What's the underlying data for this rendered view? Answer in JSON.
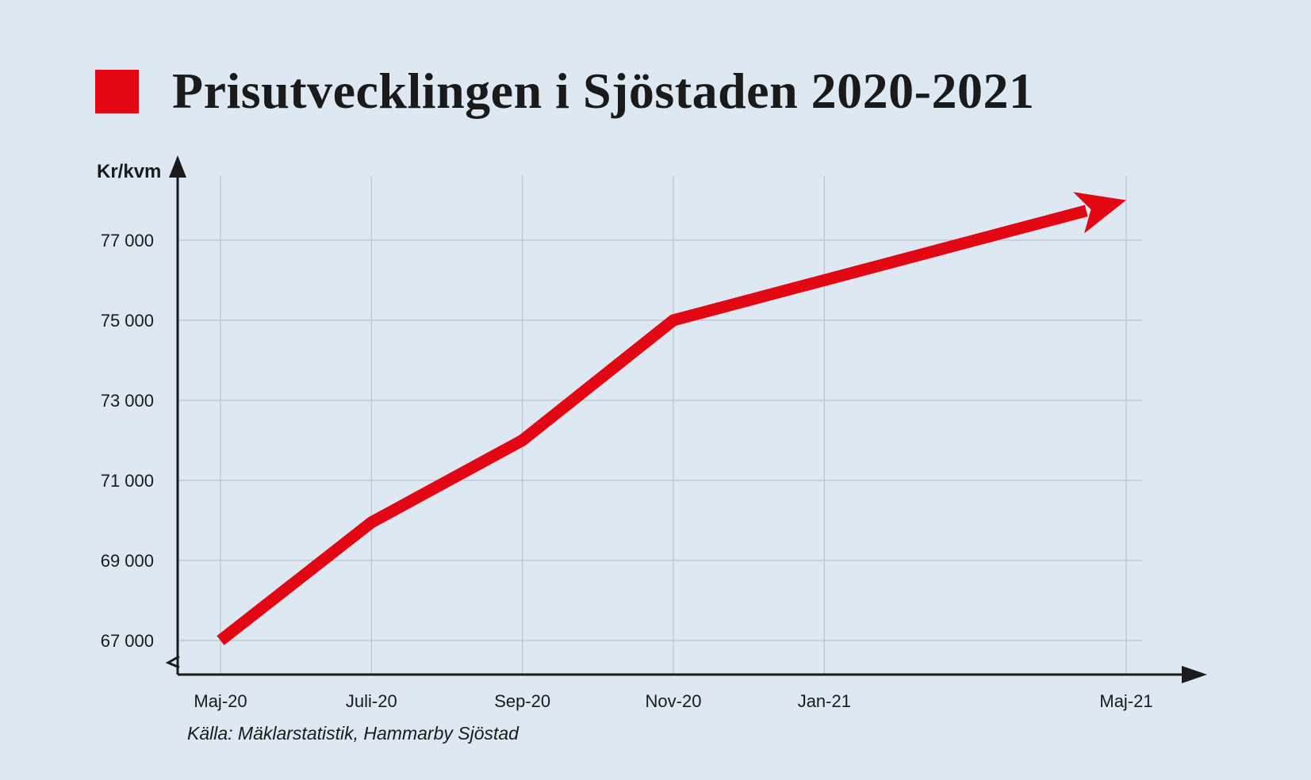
{
  "title": "Prisutvecklingen i Sjöstaden 2020-2021",
  "source": "Källa: Mäklarstatistik, Hammarby Sjöstad",
  "colors": {
    "accent": "#e30613",
    "background": "#dde8f2",
    "grid": "#b9c3cc",
    "axis": "#1a1a1a"
  },
  "chart_data": {
    "type": "line",
    "title": "Prisutvecklingen i Sjöstaden 2020-2021",
    "ylabel": "Kr/kvm",
    "xlabel": "",
    "categories": [
      "Maj-20",
      "Juli-20",
      "Sep-20",
      "Nov-20",
      "Jan-21",
      "Maj-21"
    ],
    "x_positions": [
      0,
      2,
      4,
      6,
      8,
      12
    ],
    "yticks": [
      67000,
      69000,
      71000,
      73000,
      75000,
      77000
    ],
    "ytick_labels": [
      "67 000",
      "69 000",
      "71 000",
      "73 000",
      "75 000",
      "77 000"
    ],
    "ylim": [
      66200,
      78400
    ],
    "series": [
      {
        "x": [
          0,
          2,
          4,
          6,
          8,
          12
        ],
        "values": [
          67000,
          69950,
          72000,
          75000,
          76000,
          78000
        ]
      }
    ],
    "line_ends_with_arrow": true,
    "grid": true
  }
}
